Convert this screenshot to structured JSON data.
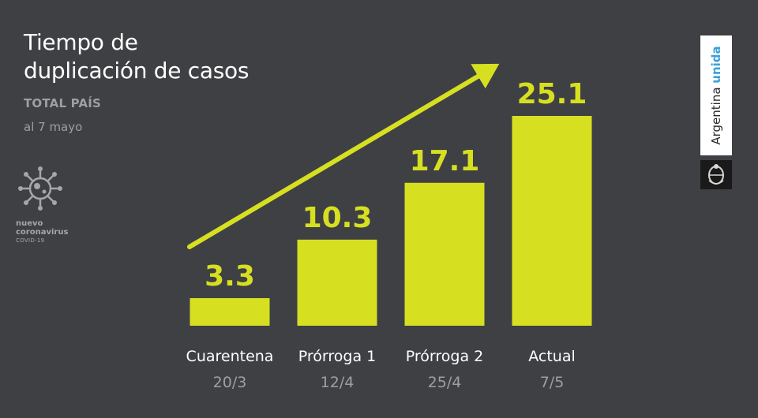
{
  "header": {
    "title_line1": "Tiempo de",
    "title_line2": "duplicación de casos",
    "subtitle": "TOTAL PAÍS",
    "date_note": "al 7 mayo"
  },
  "virus_badge": {
    "icon": "coronavirus-icon",
    "line1": "nuevo",
    "line2": "coronavirus",
    "line3": "COVID-19"
  },
  "brand": {
    "word1": "Argentina",
    "word2": "unida",
    "seal_icon": "coat-of-arms-icon",
    "accent_color": "#3ba0d8"
  },
  "colors": {
    "background": "#3f4043",
    "bar": "#d6e021",
    "text": "#ffffff",
    "muted_text": "#9d9fa2"
  },
  "chart_data": {
    "type": "bar",
    "categories": [
      "Cuarentena",
      "Prórroga 1",
      "Prórroga 2",
      "Actual"
    ],
    "dates": [
      "20/3",
      "12/4",
      "25/4",
      "7/5"
    ],
    "values": [
      3.3,
      10.3,
      17.1,
      25.1
    ],
    "value_labels": [
      "3.3",
      "10.3",
      "17.1",
      "25.1"
    ],
    "ylim": [
      0,
      25.1
    ],
    "trend_arrow": true,
    "grid": false,
    "legend": "none"
  }
}
